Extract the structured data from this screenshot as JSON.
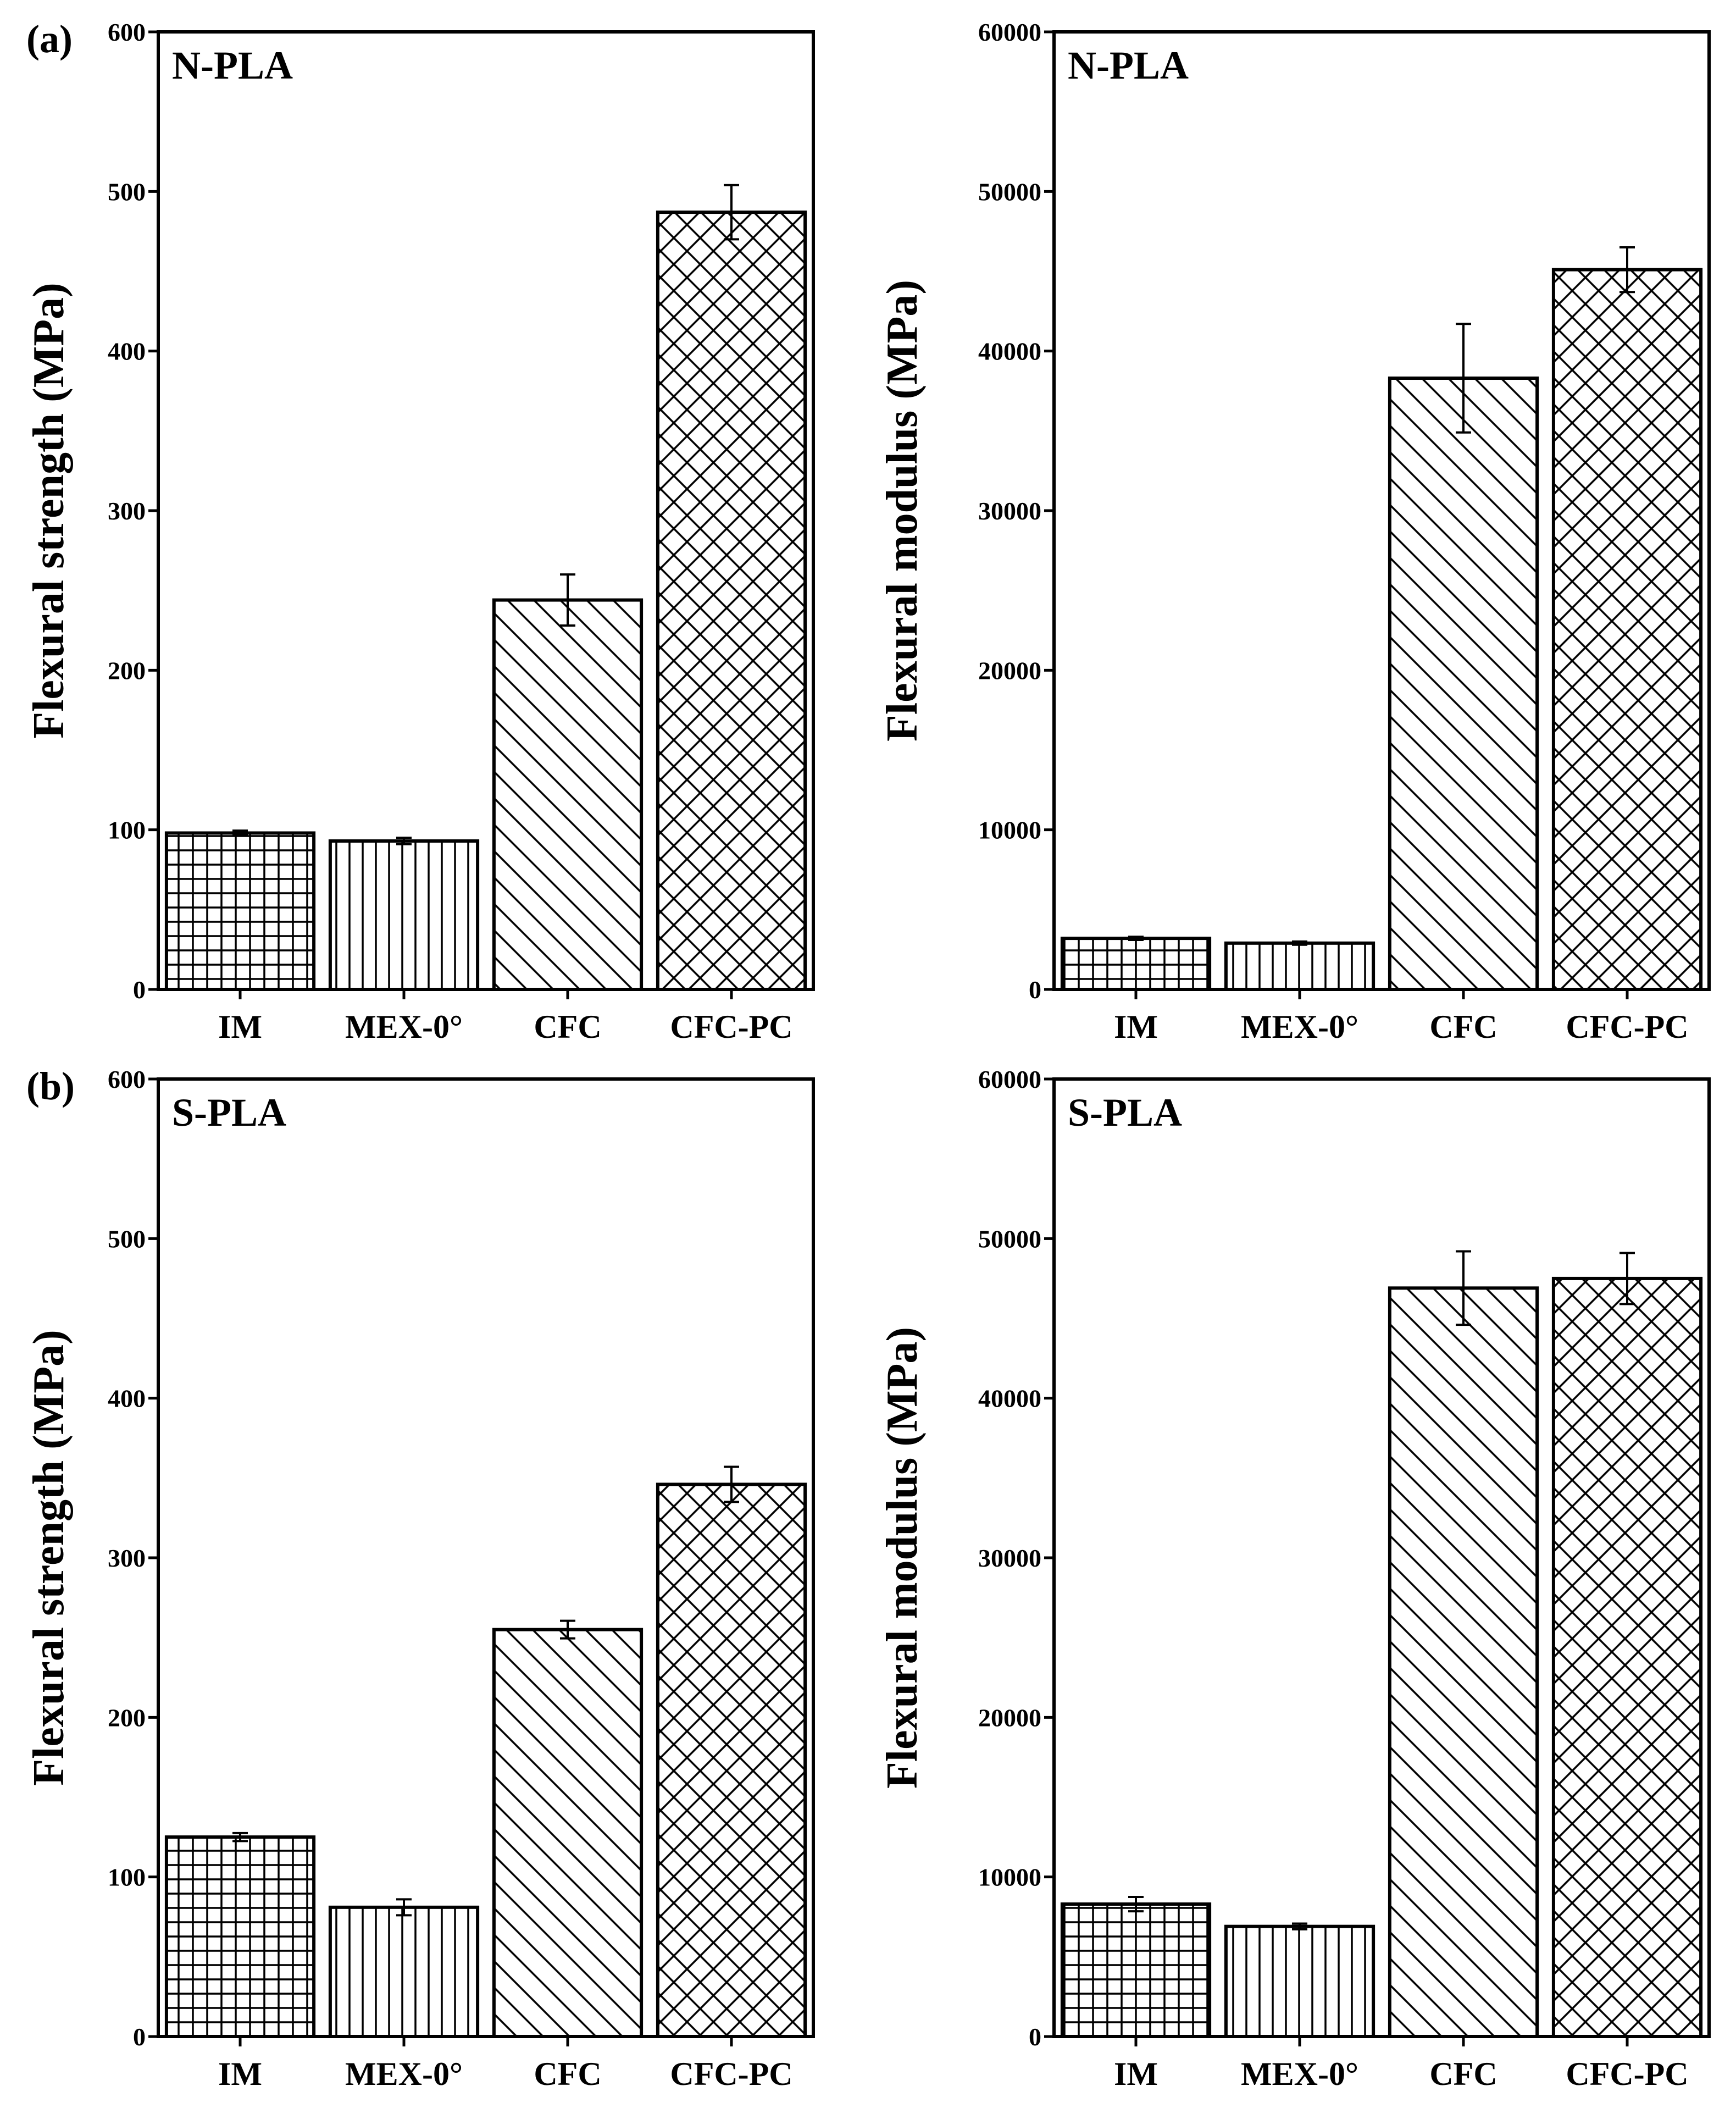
{
  "panel_labels": {
    "a": "(a)",
    "b": "(b)"
  },
  "chart_data": [
    {
      "id": "a-strength",
      "type": "bar",
      "panel": "(a)",
      "series_label": "N-PLA",
      "ylabel": "Flexural strength (MPa)",
      "xlabel": "",
      "ylim": [
        0,
        600
      ],
      "yticks": [
        "0",
        "100",
        "200",
        "300",
        "400",
        "500",
        "600"
      ],
      "categories": [
        "IM",
        "MEX-0°",
        "CFC",
        "CFC-PC"
      ],
      "values": [
        98,
        93,
        244,
        487
      ],
      "errors": [
        1.5,
        2,
        16,
        17
      ],
      "patterns": [
        "grid",
        "vertical",
        "diagonal",
        "crosshatch"
      ]
    },
    {
      "id": "a-modulus",
      "type": "bar",
      "panel": "(a)",
      "series_label": "N-PLA",
      "ylabel": "Flexural modulus (MPa)",
      "xlabel": "",
      "ylim": [
        0,
        60000
      ],
      "yticks": [
        "0",
        "10000",
        "20000",
        "30000",
        "40000",
        "50000",
        "60000"
      ],
      "categories": [
        "IM",
        "MEX-0°",
        "CFC",
        "CFC-PC"
      ],
      "values": [
        3200,
        2900,
        38300,
        45100
      ],
      "errors": [
        100,
        100,
        3400,
        1400
      ],
      "patterns": [
        "grid",
        "vertical",
        "diagonal",
        "crosshatch"
      ]
    },
    {
      "id": "b-strength",
      "type": "bar",
      "panel": "(b)",
      "series_label": "S-PLA",
      "ylabel": "Flexural strength (MPa)",
      "xlabel": "",
      "ylim": [
        0,
        600
      ],
      "yticks": [
        "0",
        "100",
        "200",
        "300",
        "400",
        "500",
        "600"
      ],
      "categories": [
        "IM",
        "MEX-0°",
        "CFC",
        "CFC-PC"
      ],
      "values": [
        125,
        81,
        255,
        346
      ],
      "errors": [
        2.5,
        5,
        5.5,
        11
      ],
      "patterns": [
        "grid",
        "vertical",
        "diagonal",
        "crosshatch"
      ]
    },
    {
      "id": "b-modulus",
      "type": "bar",
      "panel": "(b)",
      "series_label": "S-PLA",
      "ylabel": "Flexural modulus (MPa)",
      "xlabel": "",
      "ylim": [
        0,
        60000
      ],
      "yticks": [
        "0",
        "10000",
        "20000",
        "30000",
        "40000",
        "50000",
        "60000"
      ],
      "categories": [
        "IM",
        "MEX-0°",
        "CFC",
        "CFC-PC"
      ],
      "values": [
        8300,
        6900,
        46900,
        47500
      ],
      "errors": [
        450,
        180,
        2300,
        1600
      ],
      "patterns": [
        "grid",
        "vertical",
        "diagonal",
        "crosshatch"
      ]
    }
  ]
}
